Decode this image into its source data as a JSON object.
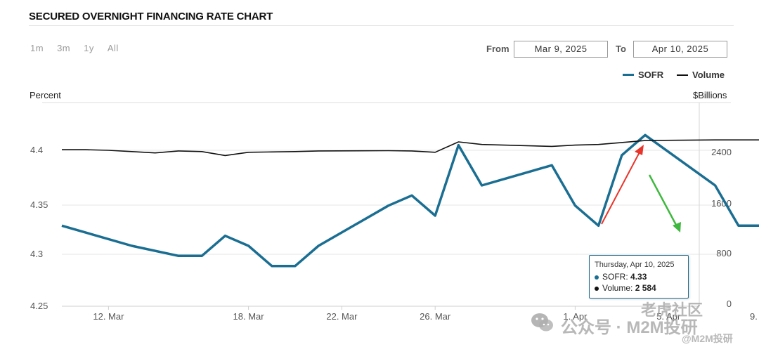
{
  "page": {
    "title": "SECURED OVERNIGHT FINANCING RATE CHART",
    "range_buttons": [
      "1m",
      "3m",
      "1y",
      "All"
    ],
    "from_label": "From",
    "from_value": "Mar 9, 2025",
    "to_label": "To",
    "to_value": "Apr 10, 2025"
  },
  "legend": {
    "sofr": {
      "label": "SOFR",
      "color": "#1a6e92"
    },
    "volume": {
      "label": "Volume",
      "color": "#111111"
    }
  },
  "tooltip": {
    "date": "Thursday, Apr 10, 2025",
    "sofr_label": "SOFR:",
    "sofr_value": "4.33",
    "volume_label": "Volume:",
    "volume_value": "2 584"
  },
  "watermark": {
    "line1": "公众号 · M2M投研",
    "line2": "老虎社区",
    "line3": "@M2M投研"
  },
  "chart_data": {
    "type": "line",
    "left_axis_title": "Percent",
    "right_axis_title": "$Billions",
    "x_tick_labels": [
      "12. Mar",
      "18. Mar",
      "22. Mar",
      "26. Mar",
      "1. Apr",
      "5. Apr",
      "9. Apr"
    ],
    "x_tick_days": [
      12,
      18,
      22,
      26,
      32,
      36,
      40
    ],
    "y_left_ticks": [
      "4.25",
      "4.3",
      "4.35",
      "4.4"
    ],
    "y_left_range": [
      4.25,
      4.4
    ],
    "y_right_ticks": [
      "0",
      "800",
      "1600",
      "2400"
    ],
    "y_right_range": [
      0,
      2400
    ],
    "x_range_days": [
      9,
      41
    ],
    "series": [
      {
        "name": "SOFR",
        "axis": "left",
        "x_days": [
          10,
          13,
          15,
          16,
          17,
          18,
          19,
          20,
          21,
          24,
          25,
          26,
          27,
          28,
          31,
          32,
          33,
          34,
          35,
          38,
          39,
          40,
          41
        ],
        "values": [
          4.33,
          4.31,
          4.3,
          4.3,
          4.32,
          4.31,
          4.29,
          4.29,
          4.31,
          4.35,
          4.36,
          4.34,
          4.41,
          4.37,
          4.39,
          4.35,
          4.33,
          4.4,
          4.42,
          4.37,
          4.33,
          4.33,
          4.33
        ]
      },
      {
        "name": "Volume",
        "axis": "right",
        "x_days": [
          10,
          11,
          12,
          13,
          14,
          15,
          16,
          17,
          18,
          19,
          20,
          21,
          24,
          25,
          26,
          27,
          28,
          31,
          32,
          33,
          34,
          35,
          38,
          39,
          40,
          41
        ],
        "values": [
          2410,
          2410,
          2400,
          2380,
          2360,
          2390,
          2380,
          2320,
          2370,
          2375,
          2380,
          2390,
          2395,
          2390,
          2370,
          2530,
          2490,
          2460,
          2480,
          2490,
          2520,
          2550,
          2560,
          2560,
          2560,
          2584
        ]
      }
    ]
  }
}
